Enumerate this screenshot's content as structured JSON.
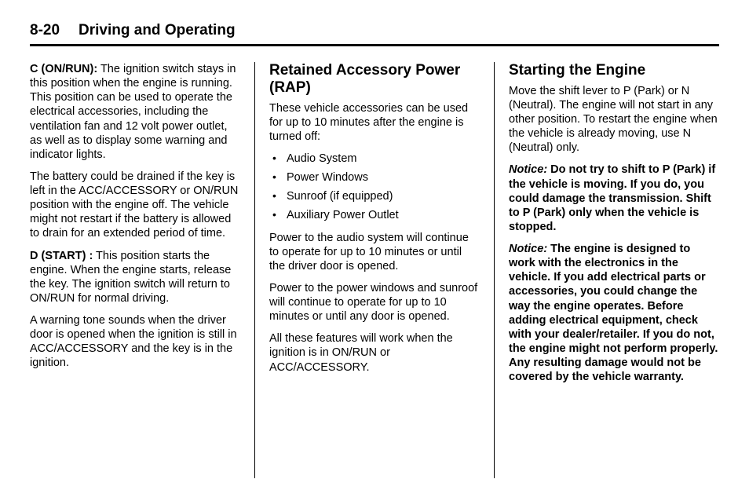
{
  "header": {
    "page_number": "8-20",
    "chapter_title": "Driving and Operating"
  },
  "col1": {
    "p1_bold": "C (ON/RUN):",
    "p1_text": " The ignition switch stays in this position when the engine is running. This position can be used to operate the electrical accessories, including the ventilation fan and 12 volt power outlet, as well as to display some warning and indicator lights.",
    "p2": "The battery could be drained if the key is left in the ACC/ACCESSORY or ON/RUN position with the engine off. The vehicle might not restart if the battery is allowed to drain for an extended period of time.",
    "p3_bold": "D (START) :",
    "p3_text": " This position starts the engine. When the engine starts, release the key. The ignition switch will return to ON/RUN for normal driving.",
    "p4": "A warning tone sounds when the driver door is opened when the ignition is still in ACC/ACCESSORY and the key is in the ignition."
  },
  "col2": {
    "title": "Retained Accessory Power (RAP)",
    "p1": "These vehicle accessories can be used for up to 10 minutes after the engine is turned off:",
    "bullets": [
      "Audio System",
      "Power Windows",
      "Sunroof (if equipped)",
      "Auxiliary Power Outlet"
    ],
    "p2": "Power to the audio system will continue to operate for up to 10 minutes or until the driver door is opened.",
    "p3": "Power to the power windows and sunroof will continue to operate for up to 10 minutes or until any door is opened.",
    "p4": "All these features will work when the ignition is in ON/RUN or ACC/ACCESSORY."
  },
  "col3": {
    "title": "Starting the Engine",
    "p1": "Move the shift lever to P (Park) or N (Neutral). The engine will not start in any other position. To restart the engine when the vehicle is already moving, use N (Neutral) only.",
    "notice1_label": "Notice:",
    "notice1_text": " Do not try to shift to P (Park) if the vehicle is moving. If you do, you could damage the transmission. Shift to P (Park) only when the vehicle is stopped.",
    "notice2_label": "Notice:",
    "notice2_text": " The engine is designed to work with the electronics in the vehicle. If you add electrical parts or accessories, you could change the way the engine operates. Before adding electrical equipment, check with your dealer/retailer. If you do not, the engine might not perform properly. Any resulting damage would not be covered by the vehicle warranty."
  }
}
